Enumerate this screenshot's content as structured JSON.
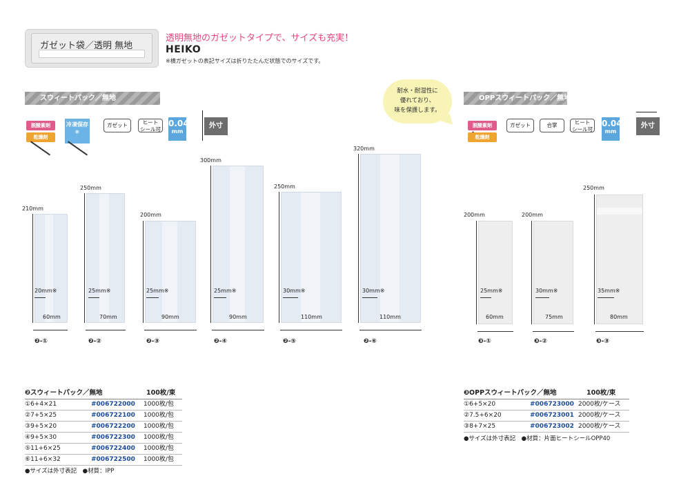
{
  "header": {
    "title": "ガゼット袋／透明 無地",
    "tagline": "透明無地のガゼットタイプで、サイズも充実！",
    "brand": "HEIKO",
    "note": "※横ガゼットの表記サイズは折りたたんだ状態でのサイズです。"
  },
  "bubble": {
    "line1": "耐水・耐湿性に",
    "line2": "優れており、",
    "line3": "味を保護します。"
  },
  "sweet": {
    "banner": "スウィートパック／無地",
    "badges": {
      "deox": "脱酸素剤",
      "dry": "乾燥剤",
      "freeze": "冷凍保存",
      "gusset": "ガゼット",
      "heat_l1": "ヒート",
      "heat_l2": "シール可",
      "thick": "0.04",
      "thick_unit": "mm",
      "outer": "外寸"
    },
    "bags": [
      {
        "label": "❷-①",
        "height": "210mm",
        "gusset": "20mm※",
        "width": "60mm"
      },
      {
        "label": "❷-②",
        "height": "250mm",
        "gusset": "25mm※",
        "width": "70mm"
      },
      {
        "label": "❷-③",
        "height": "200mm",
        "gusset": "25mm※",
        "width": "90mm"
      },
      {
        "label": "❷-④",
        "height": "300mm",
        "gusset": "25mm※",
        "width": "90mm"
      },
      {
        "label": "❷-⑤",
        "height": "250mm",
        "gusset": "30mm※",
        "width": "110mm"
      },
      {
        "label": "❷-⑥",
        "height": "320mm",
        "gusset": "30mm※",
        "width": "110mm"
      }
    ],
    "table": {
      "title": "❷スウィートパック／無地",
      "unit": "100枚/束",
      "rows": [
        {
          "size": "①6+4×21",
          "code": "#006722000",
          "qty": "1000枚/包"
        },
        {
          "size": "②7+5×25",
          "code": "#006722100",
          "qty": "1000枚/包"
        },
        {
          "size": "③9+5×20",
          "code": "#006722200",
          "qty": "1000枚/包"
        },
        {
          "size": "④9+5×30",
          "code": "#006722300",
          "qty": "1000枚/包"
        },
        {
          "size": "⑤11+6×25",
          "code": "#006722400",
          "qty": "1000枚/包"
        },
        {
          "size": "⑥11+6×32",
          "code": "#006722500",
          "qty": "1000枚/包"
        }
      ],
      "footnote": "●サイズは外寸表記　●材質：IPP"
    }
  },
  "opp": {
    "banner": "OPPスウィートパック／無地",
    "badges": {
      "deox": "脱酸素剤",
      "dry": "乾燥剤",
      "gusset": "ガゼット",
      "gassho": "合掌",
      "heat_l1": "ヒート",
      "heat_l2": "シール可",
      "thick": "0.04",
      "thick_unit": "mm",
      "outer": "外寸"
    },
    "bags": [
      {
        "label": "❸-①",
        "height": "200mm",
        "gusset": "25mm※",
        "width": "60mm"
      },
      {
        "label": "❸-②",
        "height": "200mm",
        "gusset": "30mm※",
        "width": "75mm"
      },
      {
        "label": "❸-③",
        "height": "250mm",
        "gusset": "35mm※",
        "width": "80mm"
      }
    ],
    "table": {
      "title": "❸OPPスウィートパック／無地",
      "unit": "100枚/束",
      "rows": [
        {
          "size": "①6+5×20",
          "code": "#006723000",
          "qty": "2000枚/ケース"
        },
        {
          "size": "②7.5+6×20",
          "code": "#006723001",
          "qty": "2000枚/ケース"
        },
        {
          "size": "③8+7×25",
          "code": "#006723002",
          "qty": "2000枚/ケース"
        }
      ],
      "footnote": "●サイズは外寸表記　●材質：片面ヒートシールOPP40"
    }
  }
}
